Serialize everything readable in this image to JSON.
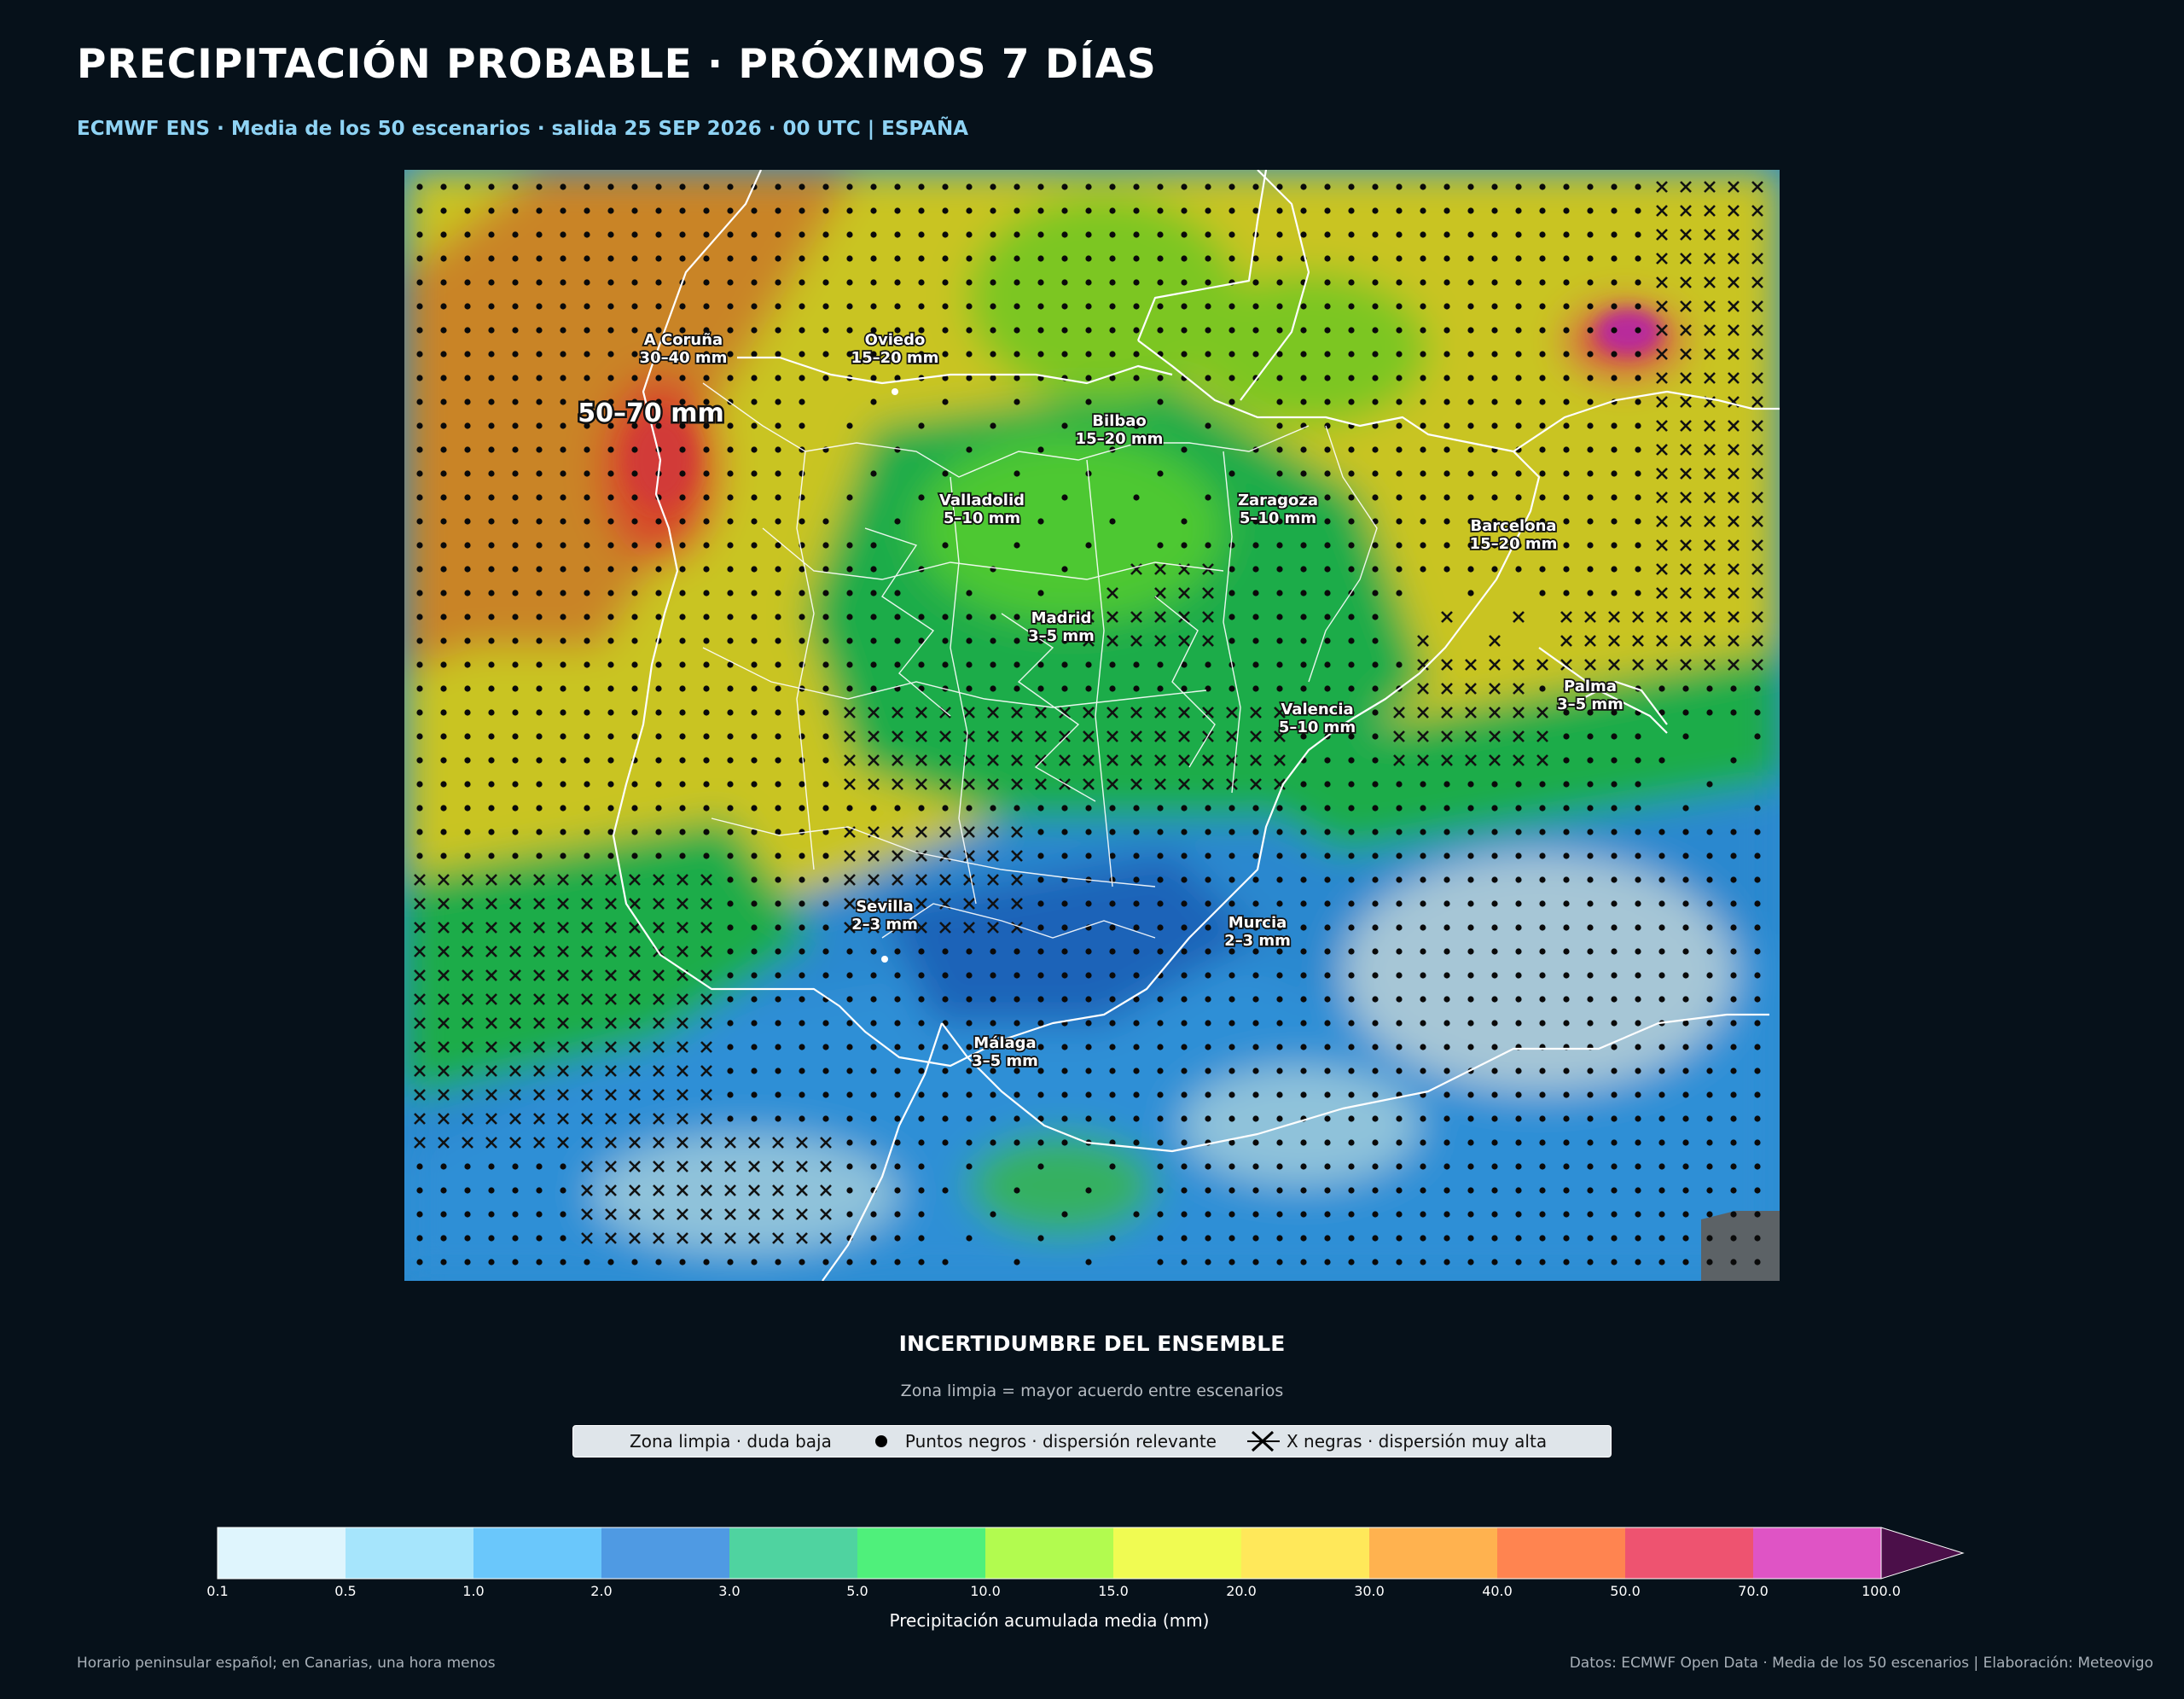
{
  "header": {
    "title": "PRECIPITACIÓN PROBABLE · PRÓXIMOS 7 DÍAS",
    "subtitle": "ECMWF ENS · Media de los 50 escenarios · salida 25 SEP 2026 · 00 UTC | ESPAÑA"
  },
  "map": {
    "peak_label": "50–70 mm",
    "cities": [
      {
        "name": "A Coruña",
        "range": "30–40 mm"
      },
      {
        "name": "Oviedo",
        "range": "15–20 mm"
      },
      {
        "name": "Bilbao",
        "range": "15–20 mm"
      },
      {
        "name": "Valladolid",
        "range": "5–10 mm"
      },
      {
        "name": "Zaragoza",
        "range": "5–10 mm"
      },
      {
        "name": "Barcelona",
        "range": "15–20 mm"
      },
      {
        "name": "Madrid",
        "range": "3–5 mm"
      },
      {
        "name": "Palma",
        "range": "3–5 mm"
      },
      {
        "name": "Valencia",
        "range": "5–10 mm"
      },
      {
        "name": "Sevilla",
        "range": "2–3 mm"
      },
      {
        "name": "Murcia",
        "range": "2–3 mm"
      },
      {
        "name": "Málaga",
        "range": "3–5 mm"
      }
    ]
  },
  "uncertainty": {
    "title": "INCERTIDUMBRE DEL ENSEMBLE",
    "subtitle": "Zona limpia = mayor acuerdo entre escenarios",
    "legend": [
      {
        "label": "Zona limpia · duda baja",
        "marker": "none"
      },
      {
        "label": "Puntos negros · dispersión relevante",
        "marker": "dot"
      },
      {
        "label": "X negras · dispersión muy alta",
        "marker": "x"
      }
    ]
  },
  "colorbar": {
    "label": "Precipitación acumulada media (mm)",
    "ticks": [
      "0.1",
      "0.5",
      "1.0",
      "2.0",
      "3.0",
      "5.0",
      "10.0",
      "15.0",
      "20.0",
      "30.0",
      "40.0",
      "50.0",
      "70.0",
      "100.0"
    ],
    "colors": [
      "#dff5fd",
      "#a6e5fc",
      "#6ac7fb",
      "#4f9ae3",
      "#4fd3a0",
      "#4ff07b",
      "#b2fb4f",
      "#f0fb52",
      "#ffe85a",
      "#ffb24f",
      "#ff8450",
      "#ee5370",
      "#df54c5"
    ],
    "extend_color": "#4b0f49"
  },
  "footer": {
    "left": "Horario peninsular español; en Canarias, una hora menos",
    "right": "Datos: ECMWF Open Data · Media de los 50 escenarios | Elaboración: Meteovigo"
  }
}
